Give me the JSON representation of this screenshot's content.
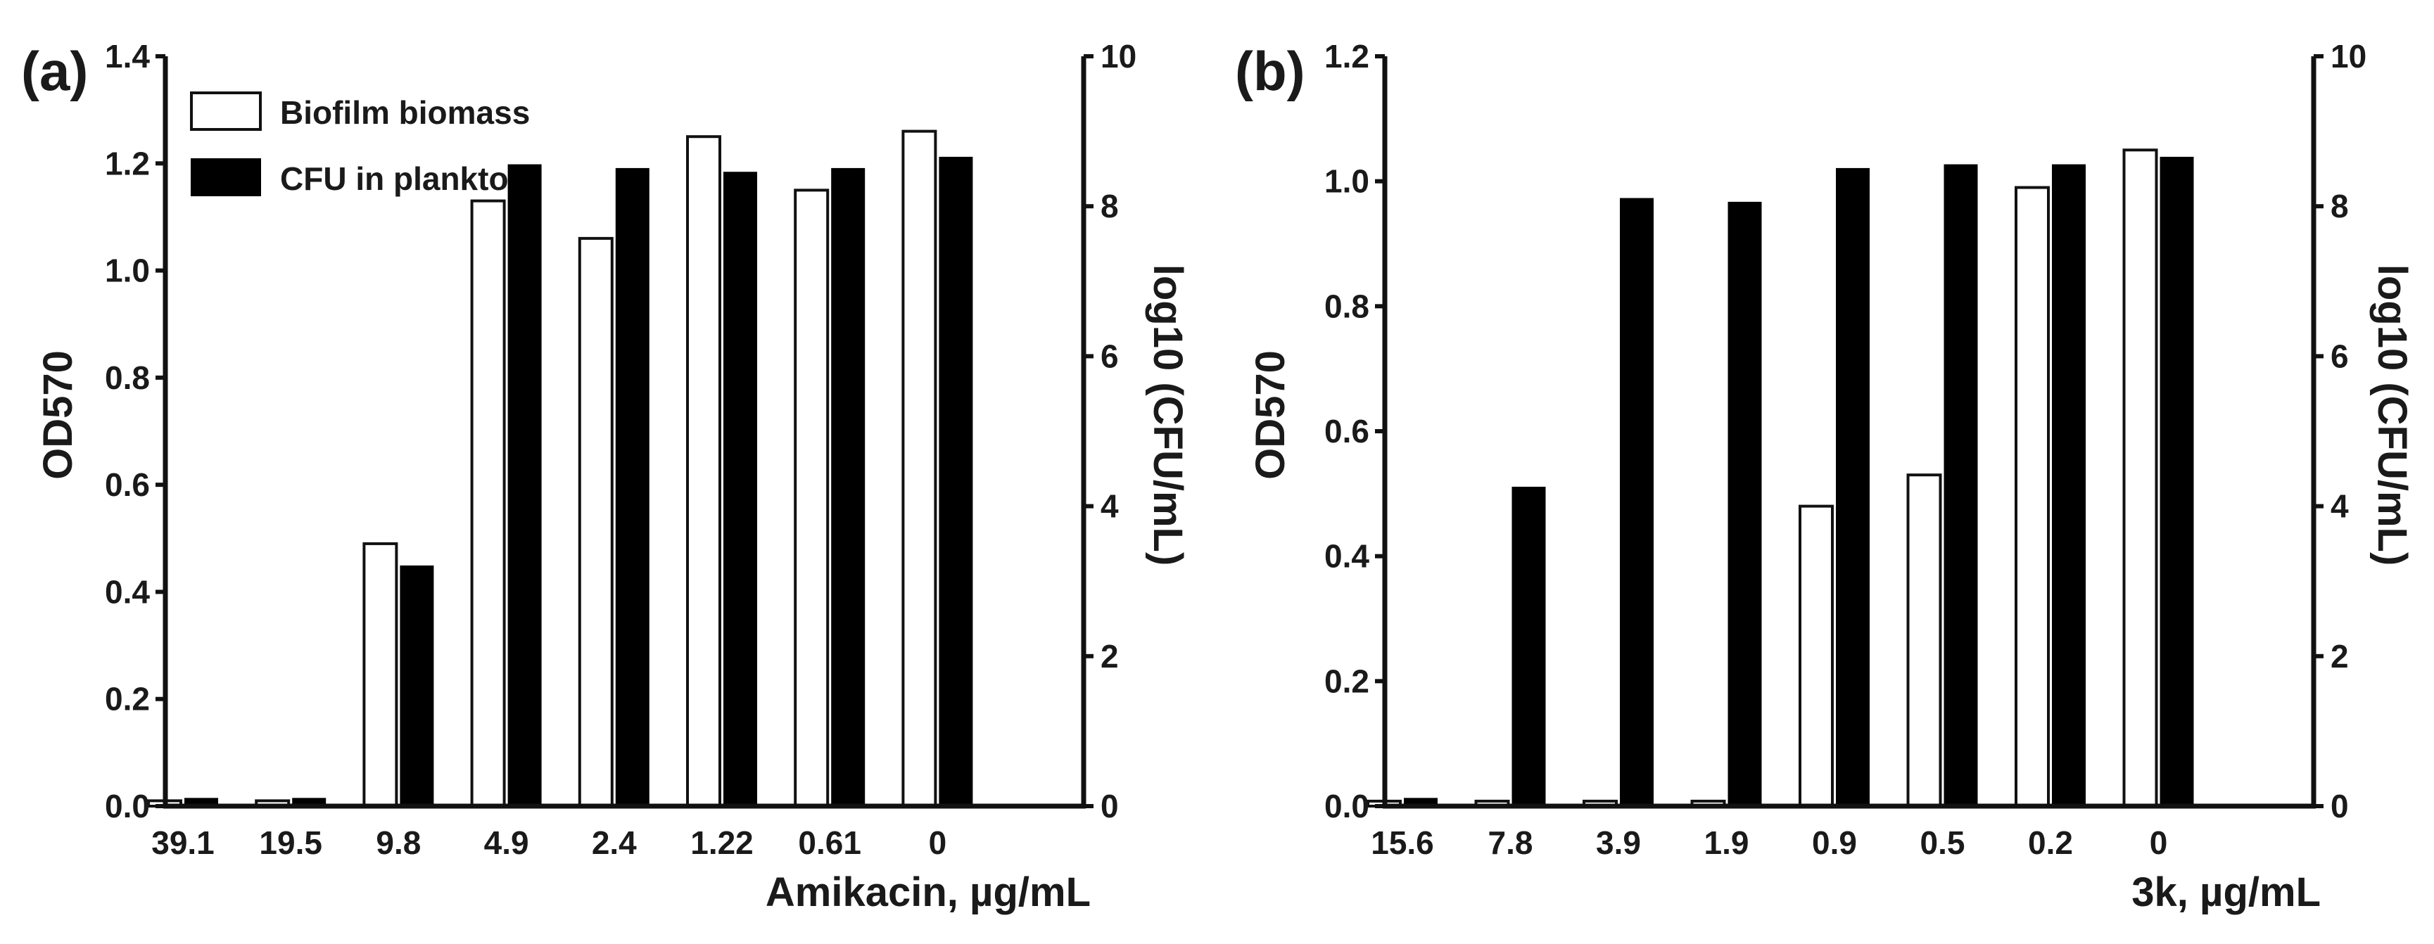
{
  "chart_data": [
    {
      "type": "bar",
      "panel_label": "(a)",
      "categories": [
        "39.1",
        "19.5",
        "9.8",
        "4.9",
        "2.4",
        "1.22",
        "0.61",
        "0"
      ],
      "xlabel": "Amikacin, µg/mL",
      "ylabel": "OD570",
      "y2label": "log10 (CFU/mL)",
      "ylim": [
        0,
        1.4
      ],
      "yticks": [
        "0.0",
        "0.2",
        "0.4",
        "0.6",
        "0.8",
        "1.0",
        "1.2",
        "1.4"
      ],
      "y2lim": [
        0,
        10
      ],
      "y2ticks": [
        "0",
        "2",
        "4",
        "6",
        "8",
        "10"
      ],
      "legend": {
        "position": "top-left",
        "entries": [
          "Biofilm biomass",
          "CFU in plankton"
        ]
      },
      "series": [
        {
          "name": "Biofilm biomass",
          "axis": "left",
          "style": "open",
          "values": [
            0.01,
            0.01,
            0.49,
            1.13,
            1.06,
            1.25,
            1.15,
            1.26
          ]
        },
        {
          "name": "CFU in plankton",
          "axis": "right",
          "style": "solid",
          "values": [
            0.1,
            0.1,
            3.2,
            8.55,
            8.5,
            8.45,
            8.5,
            8.65
          ]
        }
      ]
    },
    {
      "type": "bar",
      "panel_label": "(b)",
      "categories": [
        "15.6",
        "7.8",
        "3.9",
        "1.9",
        "0.9",
        "0.5",
        "0.2",
        "0"
      ],
      "xlabel": "3k, µg/mL",
      "ylabel": "OD570",
      "y2label": "log10 (CFU/mL)",
      "ylim": [
        0,
        1.2
      ],
      "yticks": [
        "0.0",
        "0.2",
        "0.4",
        "0.6",
        "0.8",
        "1.0",
        "1.2"
      ],
      "y2lim": [
        0,
        10
      ],
      "y2ticks": [
        "0",
        "2",
        "4",
        "6",
        "8",
        "10"
      ],
      "series": [
        {
          "name": "Biofilm biomass",
          "axis": "left",
          "style": "open",
          "values": [
            0.008,
            0.008,
            0.008,
            0.008,
            0.48,
            0.53,
            0.99,
            1.05
          ]
        },
        {
          "name": "CFU in plankton",
          "axis": "right",
          "style": "solid",
          "values": [
            0.1,
            4.25,
            8.1,
            8.05,
            8.5,
            8.55,
            8.55,
            8.65
          ]
        }
      ]
    }
  ]
}
